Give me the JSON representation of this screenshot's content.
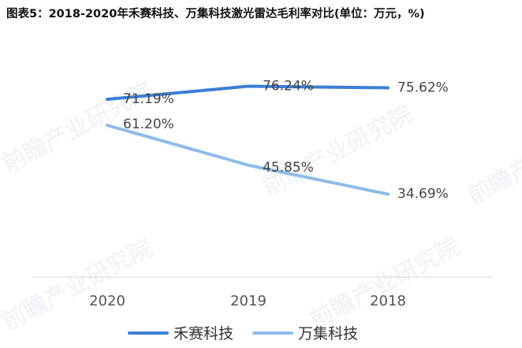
{
  "chart_data": {
    "type": "line",
    "title": "图表5：2018-2020年禾赛科技、万集科技激光雷达毛利率对比(单位：万元，%)",
    "categories": [
      "2020",
      "2019",
      "2018"
    ],
    "series": [
      {
        "name": "禾赛科技",
        "values": [
          71.19,
          76.24,
          75.62
        ],
        "labels": [
          "71.19%",
          "76.24%",
          "75.62%"
        ],
        "color": "#3d7ed6"
      },
      {
        "name": "万集科技",
        "values": [
          61.2,
          45.85,
          34.69
        ],
        "labels": [
          "61.20%",
          "45.85%",
          "34.69%"
        ],
        "color": "#8fbce8"
      }
    ],
    "legend_position": "bottom",
    "grid": false,
    "watermark": "前瞻产业研究院"
  }
}
